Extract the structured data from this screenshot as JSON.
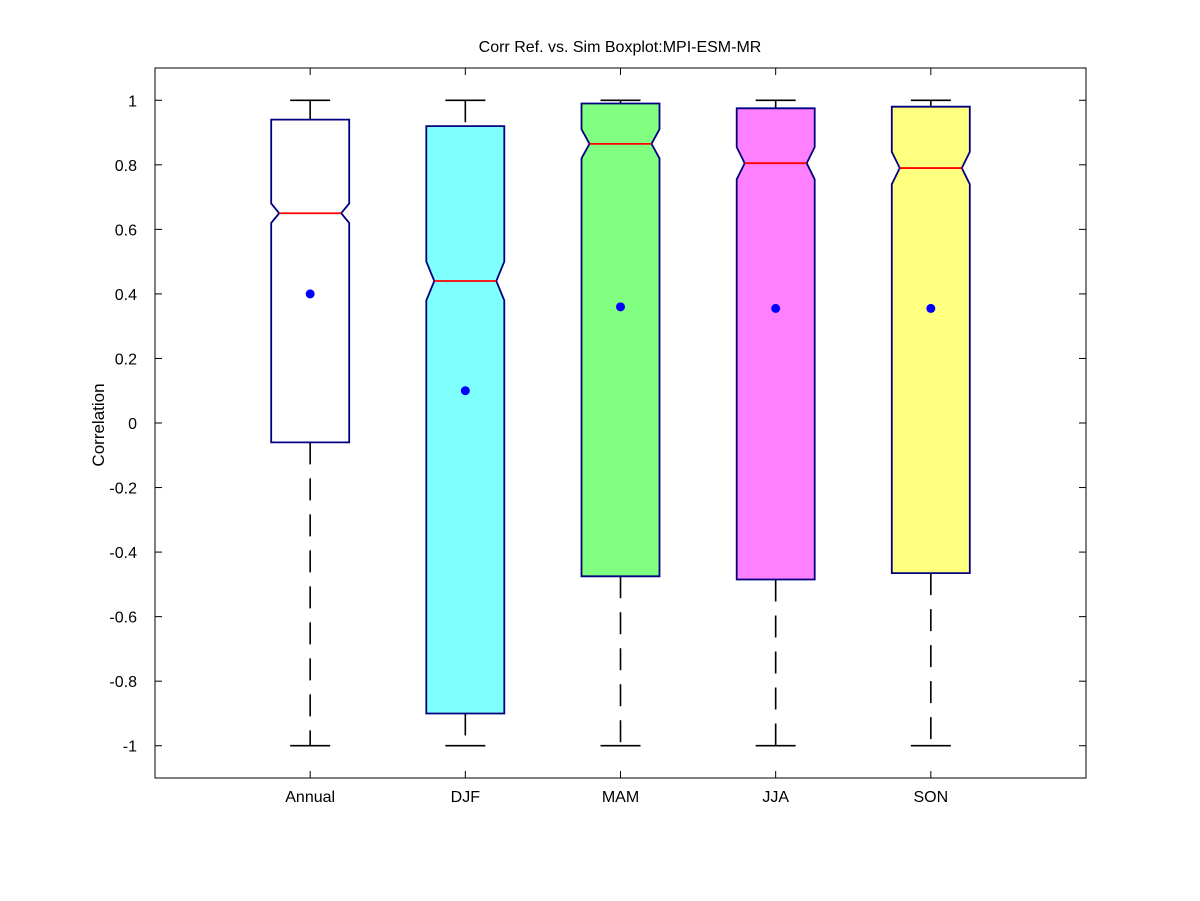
{
  "chart_data": {
    "type": "boxplot",
    "title": "Corr Ref. vs. Sim Boxplot:MPI-ESM-MR",
    "xlabel": "",
    "ylabel": "Correlation",
    "ylim": [
      -1.1,
      1.1
    ],
    "yticks": [
      -1,
      -0.8,
      -0.6,
      -0.4,
      -0.2,
      0,
      0.2,
      0.4,
      0.6,
      0.8,
      1
    ],
    "ytick_labels": [
      "-1",
      "-0.8",
      "-0.6",
      "-0.4",
      "-0.2",
      "0",
      "0.2",
      "0.4",
      "0.6",
      "0.8",
      "1"
    ],
    "categories": [
      "Annual",
      "DJF",
      "MAM",
      "JJA",
      "SON"
    ],
    "boxes": [
      {
        "category": "Annual",
        "min": -1.0,
        "q1": -0.06,
        "median": 0.65,
        "q3": 0.94,
        "max": 1.0,
        "mean": 0.4,
        "notch_low": 0.62,
        "notch_high": 0.68,
        "fill": "#ffffff"
      },
      {
        "category": "DJF",
        "min": -1.0,
        "q1": -0.9,
        "median": 0.44,
        "q3": 0.92,
        "max": 1.0,
        "mean": 0.1,
        "notch_low": 0.38,
        "notch_high": 0.5,
        "fill": "#80ffff"
      },
      {
        "category": "MAM",
        "min": -1.0,
        "q1": -0.475,
        "median": 0.865,
        "q3": 0.99,
        "max": 1.0,
        "mean": 0.36,
        "notch_low": 0.82,
        "notch_high": 0.91,
        "fill": "#80ff80"
      },
      {
        "category": "JJA",
        "min": -1.0,
        "q1": -0.485,
        "median": 0.805,
        "q3": 0.975,
        "max": 1.0,
        "mean": 0.355,
        "notch_low": 0.755,
        "notch_high": 0.855,
        "fill": "#ff80ff"
      },
      {
        "category": "SON",
        "min": -1.0,
        "q1": -0.465,
        "median": 0.79,
        "q3": 0.98,
        "max": 1.0,
        "mean": 0.355,
        "notch_low": 0.74,
        "notch_high": 0.84,
        "fill": "#ffff80"
      }
    ],
    "colors": {
      "box_edge": "#000080",
      "median": "#ff0000",
      "mean_marker": "#0000ff",
      "whisker": "#000000"
    },
    "grid": false,
    "legend": "none"
  }
}
